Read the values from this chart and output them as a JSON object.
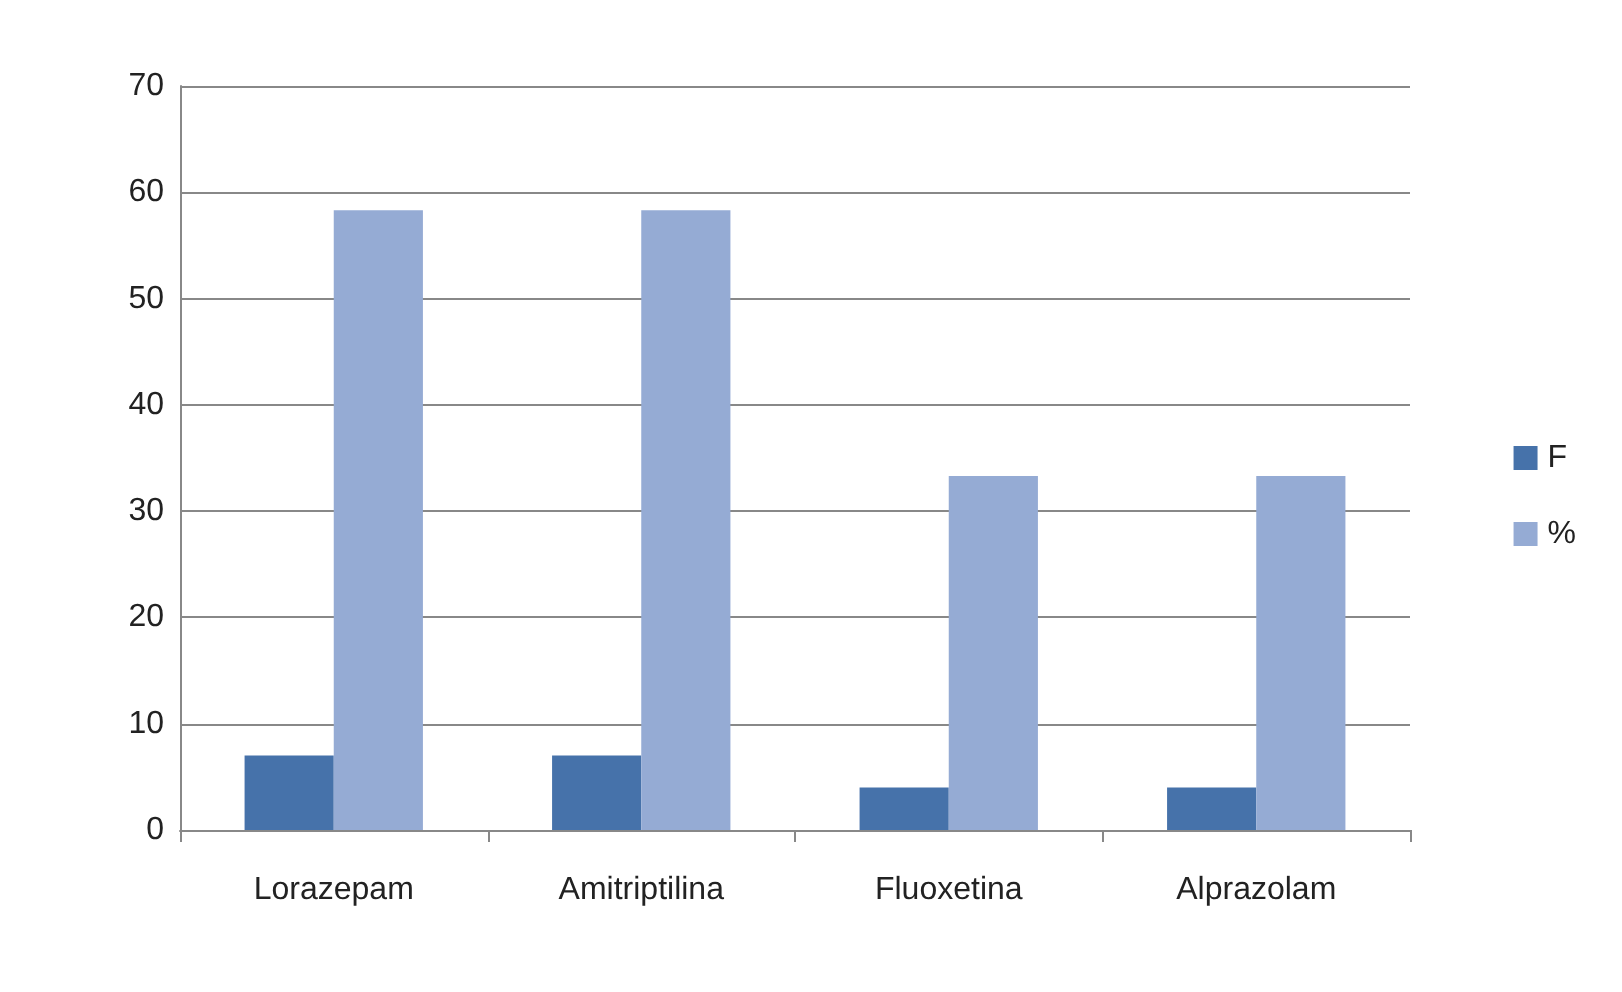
{
  "chart_data": {
    "type": "bar",
    "categories": [
      "Lorazepam",
      "Amitriptilina",
      "Fluoxetina",
      "Alprazolam"
    ],
    "series": [
      {
        "name": "F",
        "color": "#4672aa",
        "values": [
          7,
          7,
          4,
          4
        ]
      },
      {
        "name": "%",
        "color": "#95abd4",
        "values": [
          58.3,
          58.3,
          33.3,
          33.3
        ]
      }
    ],
    "ylim": [
      0,
      70
    ],
    "yticks": [
      0,
      10,
      20,
      30,
      40,
      50,
      60,
      70
    ],
    "grid": "y",
    "legend": "right"
  }
}
